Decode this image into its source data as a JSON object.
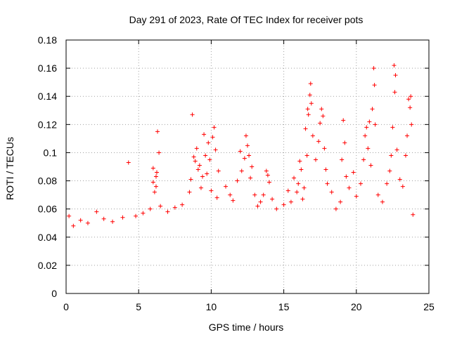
{
  "chart_data": {
    "type": "scatter",
    "title": "Day 291 of 2023, Rate Of TEC Index for receiver pots",
    "xlabel": "GPS time / hours",
    "ylabel": "ROTI / TECUs",
    "xlim": [
      0,
      25
    ],
    "ylim": [
      0,
      0.18
    ],
    "xticks": [
      0,
      5,
      10,
      15,
      20,
      25
    ],
    "xtick_labels": [
      "0",
      "5",
      "10",
      "15",
      "20",
      "25"
    ],
    "yticks": [
      0,
      0.02,
      0.04,
      0.06,
      0.08,
      0.1,
      0.12,
      0.14,
      0.16,
      0.18
    ],
    "ytick_labels": [
      "0",
      "0.02",
      "0.04",
      "0.06",
      "0.08",
      "0.1",
      "0.12",
      "0.14",
      "0.16",
      "0.18"
    ],
    "grid": true,
    "marker": "+",
    "color": "#ff0000",
    "series": [
      {
        "points": [
          [
            0.2,
            0.055
          ],
          [
            0.5,
            0.048
          ],
          [
            1.0,
            0.052
          ],
          [
            1.5,
            0.05
          ],
          [
            2.1,
            0.058
          ],
          [
            2.6,
            0.053
          ],
          [
            3.2,
            0.051
          ],
          [
            3.9,
            0.054
          ],
          [
            4.3,
            0.093
          ],
          [
            4.8,
            0.055
          ],
          [
            5.3,
            0.057
          ],
          [
            5.8,
            0.06
          ],
          [
            6.0,
            0.089
          ],
          [
            6.0,
            0.079
          ],
          [
            6.1,
            0.072
          ],
          [
            6.2,
            0.076
          ],
          [
            6.2,
            0.083
          ],
          [
            6.25,
            0.086
          ],
          [
            6.3,
            0.115
          ],
          [
            6.4,
            0.1
          ],
          [
            6.5,
            0.062
          ],
          [
            7.0,
            0.058
          ],
          [
            7.5,
            0.061
          ],
          [
            8.0,
            0.063
          ],
          [
            8.5,
            0.072
          ],
          [
            8.6,
            0.081
          ],
          [
            8.7,
            0.127
          ],
          [
            8.8,
            0.097
          ],
          [
            8.9,
            0.094
          ],
          [
            9.0,
            0.103
          ],
          [
            9.1,
            0.088
          ],
          [
            9.2,
            0.091
          ],
          [
            9.3,
            0.075
          ],
          [
            9.4,
            0.083
          ],
          [
            9.5,
            0.113
          ],
          [
            9.6,
            0.098
          ],
          [
            9.7,
            0.085
          ],
          [
            9.8,
            0.107
          ],
          [
            9.9,
            0.095
          ],
          [
            10.0,
            0.073
          ],
          [
            10.1,
            0.111
          ],
          [
            10.2,
            0.118
          ],
          [
            10.3,
            0.102
          ],
          [
            10.4,
            0.068
          ],
          [
            10.5,
            0.087
          ],
          [
            11.0,
            0.076
          ],
          [
            11.3,
            0.07
          ],
          [
            11.5,
            0.066
          ],
          [
            11.8,
            0.08
          ],
          [
            12.0,
            0.101
          ],
          [
            12.1,
            0.087
          ],
          [
            12.3,
            0.096
          ],
          [
            12.4,
            0.112
          ],
          [
            12.5,
            0.105
          ],
          [
            12.6,
            0.098
          ],
          [
            12.7,
            0.082
          ],
          [
            12.8,
            0.09
          ],
          [
            13.0,
            0.07
          ],
          [
            13.2,
            0.062
          ],
          [
            13.4,
            0.065
          ],
          [
            13.6,
            0.07
          ],
          [
            13.8,
            0.087
          ],
          [
            13.9,
            0.084
          ],
          [
            14.0,
            0.079
          ],
          [
            14.2,
            0.067
          ],
          [
            14.5,
            0.06
          ],
          [
            15.0,
            0.063
          ],
          [
            15.3,
            0.073
          ],
          [
            15.5,
            0.065
          ],
          [
            15.7,
            0.082
          ],
          [
            15.9,
            0.072
          ],
          [
            16.0,
            0.078
          ],
          [
            16.1,
            0.094
          ],
          [
            16.2,
            0.088
          ],
          [
            16.3,
            0.067
          ],
          [
            16.4,
            0.075
          ],
          [
            16.5,
            0.117
          ],
          [
            16.6,
            0.098
          ],
          [
            16.65,
            0.131
          ],
          [
            16.7,
            0.127
          ],
          [
            16.8,
            0.141
          ],
          [
            16.85,
            0.149
          ],
          [
            16.9,
            0.135
          ],
          [
            17.0,
            0.112
          ],
          [
            17.2,
            0.095
          ],
          [
            17.4,
            0.108
          ],
          [
            17.5,
            0.121
          ],
          [
            17.6,
            0.131
          ],
          [
            17.7,
            0.126
          ],
          [
            17.8,
            0.103
          ],
          [
            17.9,
            0.088
          ],
          [
            18.0,
            0.078
          ],
          [
            18.3,
            0.072
          ],
          [
            18.6,
            0.06
          ],
          [
            18.9,
            0.065
          ],
          [
            19.0,
            0.095
          ],
          [
            19.1,
            0.123
          ],
          [
            19.2,
            0.107
          ],
          [
            19.3,
            0.083
          ],
          [
            19.5,
            0.075
          ],
          [
            19.8,
            0.086
          ],
          [
            20.0,
            0.069
          ],
          [
            20.3,
            0.078
          ],
          [
            20.5,
            0.095
          ],
          [
            20.6,
            0.112
          ],
          [
            20.7,
            0.118
          ],
          [
            20.8,
            0.103
          ],
          [
            20.9,
            0.122
          ],
          [
            21.0,
            0.091
          ],
          [
            21.1,
            0.131
          ],
          [
            21.2,
            0.16
          ],
          [
            21.25,
            0.148
          ],
          [
            21.3,
            0.12
          ],
          [
            21.5,
            0.07
          ],
          [
            21.8,
            0.065
          ],
          [
            22.1,
            0.078
          ],
          [
            22.3,
            0.087
          ],
          [
            22.4,
            0.098
          ],
          [
            22.5,
            0.118
          ],
          [
            22.6,
            0.162
          ],
          [
            22.65,
            0.143
          ],
          [
            22.7,
            0.155
          ],
          [
            22.8,
            0.102
          ],
          [
            23.0,
            0.081
          ],
          [
            23.2,
            0.076
          ],
          [
            23.4,
            0.098
          ],
          [
            23.5,
            0.112
          ],
          [
            23.6,
            0.138
          ],
          [
            23.7,
            0.132
          ],
          [
            23.75,
            0.14
          ],
          [
            23.8,
            0.12
          ],
          [
            23.9,
            0.056
          ]
        ]
      }
    ]
  }
}
